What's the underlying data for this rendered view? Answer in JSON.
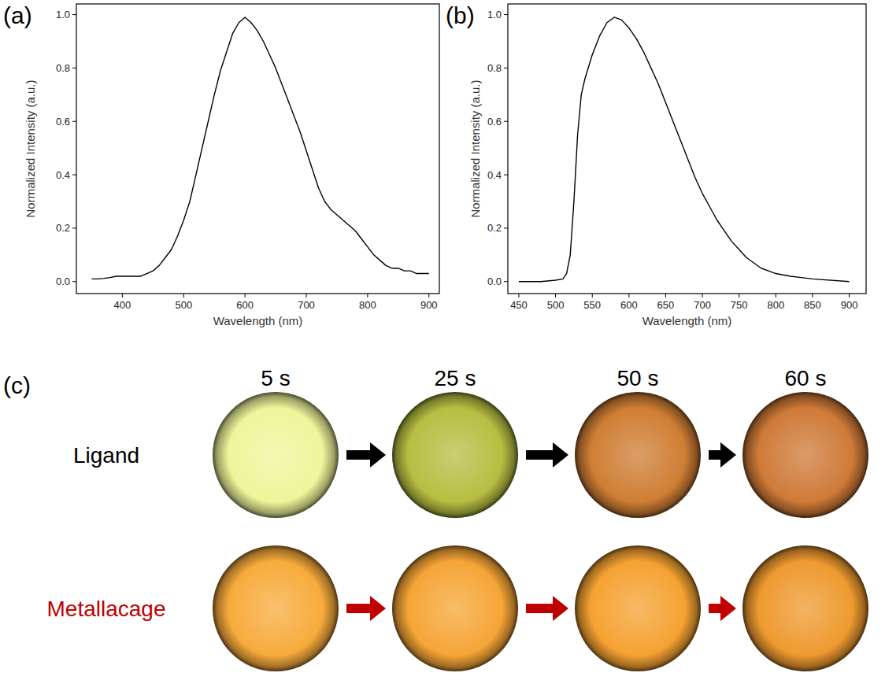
{
  "chart_data": [
    {
      "type": "line",
      "panel": "(a)",
      "x_label": "Wavelength (nm)",
      "y_label": "Normalized Intensity (a.u.)",
      "xlim": [
        325,
        917
      ],
      "ylim": [
        -0.045,
        1.04
      ],
      "xticks": [
        400,
        500,
        600,
        700,
        800,
        900
      ],
      "yticks": [
        {
          "value": 0,
          "label": "0.0"
        },
        {
          "value": 0.2,
          "label": "0.2"
        },
        {
          "value": 0.4,
          "label": "0.4"
        },
        {
          "value": 0.6,
          "label": "0.6"
        },
        {
          "value": 0.8,
          "label": "0.8"
        },
        {
          "value": 1,
          "label": "1.0"
        }
      ],
      "grid": false,
      "series": [
        {
          "color": "#000000",
          "x": [
            350,
            360,
            370,
            380,
            390,
            400,
            410,
            420,
            430,
            440,
            450,
            460,
            470,
            480,
            490,
            500,
            510,
            520,
            530,
            540,
            550,
            560,
            570,
            580,
            590,
            600,
            610,
            620,
            630,
            640,
            650,
            660,
            670,
            680,
            690,
            700,
            710,
            720,
            730,
            740,
            750,
            760,
            770,
            780,
            790,
            800,
            810,
            820,
            830,
            840,
            850,
            860,
            870,
            880,
            890,
            900
          ],
          "values": [
            0.01,
            0.01,
            0.012,
            0.015,
            0.02,
            0.02,
            0.02,
            0.02,
            0.02,
            0.03,
            0.04,
            0.06,
            0.09,
            0.12,
            0.17,
            0.23,
            0.3,
            0.4,
            0.5,
            0.6,
            0.7,
            0.79,
            0.86,
            0.93,
            0.97,
            0.99,
            0.97,
            0.94,
            0.9,
            0.85,
            0.8,
            0.74,
            0.68,
            0.62,
            0.56,
            0.49,
            0.42,
            0.35,
            0.3,
            0.27,
            0.25,
            0.23,
            0.21,
            0.19,
            0.16,
            0.13,
            0.1,
            0.08,
            0.06,
            0.05,
            0.05,
            0.04,
            0.04,
            0.03,
            0.03,
            0.03
          ]
        }
      ]
    },
    {
      "type": "line",
      "panel": "(b)",
      "x_label": "Wavelength (nm)",
      "y_label": "Normalized Intensity (a.u.)",
      "xlim": [
        435,
        923
      ],
      "ylim": [
        -0.045,
        1.04
      ],
      "xticks": [
        450,
        500,
        550,
        600,
        650,
        700,
        750,
        800,
        850,
        900
      ],
      "yticks": [
        {
          "value": 0,
          "label": "0.0"
        },
        {
          "value": 0.2,
          "label": "0.2"
        },
        {
          "value": 0.4,
          "label": "0.4"
        },
        {
          "value": 0.6,
          "label": "0.6"
        },
        {
          "value": 0.8,
          "label": "0.8"
        },
        {
          "value": 1,
          "label": "1.0"
        }
      ],
      "grid": false,
      "series": [
        {
          "color": "#000000",
          "x": [
            450,
            480,
            500,
            510,
            515,
            520,
            525,
            530,
            535,
            540,
            550,
            560,
            570,
            580,
            590,
            600,
            610,
            620,
            630,
            640,
            650,
            660,
            670,
            680,
            690,
            700,
            710,
            720,
            730,
            740,
            750,
            760,
            770,
            780,
            790,
            800,
            820,
            850,
            900
          ],
          "values": [
            0,
            0,
            0.005,
            0.01,
            0.03,
            0.1,
            0.3,
            0.55,
            0.7,
            0.76,
            0.85,
            0.92,
            0.97,
            0.99,
            0.98,
            0.95,
            0.91,
            0.86,
            0.8,
            0.74,
            0.67,
            0.6,
            0.53,
            0.46,
            0.39,
            0.33,
            0.28,
            0.23,
            0.19,
            0.15,
            0.12,
            0.09,
            0.07,
            0.05,
            0.04,
            0.03,
            0.02,
            0.01,
            0
          ]
        }
      ]
    }
  ],
  "panel_c": {
    "panel": "(c)",
    "times": [
      "5 s",
      "25 s",
      "50 s",
      "60 s"
    ],
    "rows": [
      {
        "label": "Ligand",
        "color": "#000000",
        "colors": [
          "#eef59a",
          "#b7be42",
          "#cf7e34",
          "#cf7a38"
        ]
      },
      {
        "label": "Metallacage",
        "color": "#c00000",
        "colors": [
          "#f7ab3c",
          "#f6a536",
          "#f5a232",
          "#ee9a30"
        ]
      }
    ]
  }
}
